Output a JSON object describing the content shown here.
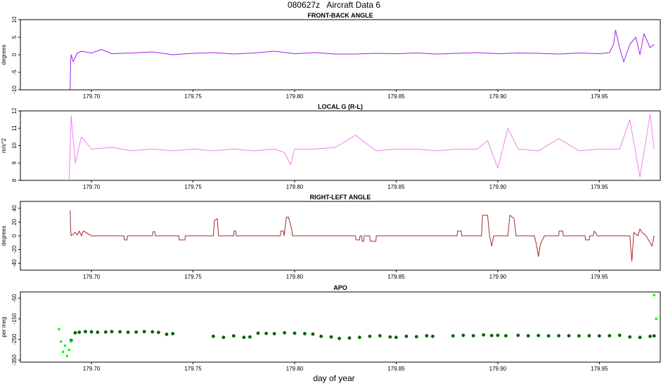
{
  "figure": {
    "title": "080627z   Aircraft Data 6",
    "xlabel": "day of year"
  },
  "chart_data": [
    {
      "type": "line",
      "title": "FRONT-BACK ANGLE",
      "ylabel": "degrees",
      "color": "#a020f0",
      "xlim": [
        179.665,
        179.98
      ],
      "ylim": [
        -10,
        10
      ],
      "xticks": [
        179.7,
        179.75,
        179.8,
        179.85,
        179.9,
        179.95
      ],
      "xtick_labels": [
        "179.70",
        "179.75",
        "179.80",
        "179.85",
        "179.90",
        "179.95"
      ],
      "yticks": [
        -10,
        -5,
        0,
        5,
        10
      ],
      "ytick_labels": [
        "-10",
        "-5",
        "0",
        "5",
        "10"
      ],
      "series": [
        {
          "x": [
            179.6895,
            179.6897,
            179.69,
            179.691,
            179.693,
            179.695,
            179.7,
            179.705,
            179.71,
            179.72,
            179.73,
            179.74,
            179.75,
            179.76,
            179.77,
            179.78,
            179.79,
            179.8,
            179.81,
            179.82,
            179.83,
            179.84,
            179.85,
            179.86,
            179.87,
            179.88,
            179.89,
            179.9,
            179.91,
            179.92,
            179.93,
            179.94,
            179.95,
            179.955,
            179.957,
            179.958,
            179.96,
            179.962,
            179.965,
            179.968,
            179.97,
            179.972,
            179.975,
            179.977
          ],
          "y": [
            -10,
            -2,
            0,
            -2,
            0.5,
            1,
            0.5,
            1.5,
            0.3,
            0.5,
            0.8,
            0,
            0.4,
            0.6,
            0.2,
            0.5,
            1,
            0.3,
            0.6,
            0.2,
            0.2,
            0.4,
            0.3,
            0.5,
            0.2,
            0.4,
            0.6,
            0.3,
            0.5,
            0.4,
            0.2,
            0.5,
            0.3,
            0.6,
            3,
            7,
            2,
            -2,
            3,
            5,
            0,
            6,
            2,
            3
          ]
        }
      ]
    },
    {
      "type": "line",
      "title": "LOCAL G (R-L)",
      "ylabel": "m/s^2",
      "color": "#ee82ee",
      "xlim": [
        179.665,
        179.98
      ],
      "ylim": [
        8,
        12
      ],
      "xticks": [
        179.7,
        179.75,
        179.8,
        179.85,
        179.9,
        179.95
      ],
      "xtick_labels": [
        "179.70",
        "179.75",
        "179.80",
        "179.85",
        "179.90",
        "179.95"
      ],
      "yticks": [
        8,
        9,
        10,
        11,
        12
      ],
      "ytick_labels": [
        "8",
        "9",
        "10",
        "11",
        "12"
      ],
      "series": [
        {
          "x": [
            179.689,
            179.69,
            179.692,
            179.695,
            179.7,
            179.71,
            179.72,
            179.73,
            179.74,
            179.75,
            179.76,
            179.77,
            179.78,
            179.79,
            179.795,
            179.798,
            179.8,
            179.81,
            179.82,
            179.83,
            179.84,
            179.85,
            179.86,
            179.87,
            179.88,
            179.89,
            179.895,
            179.9,
            179.905,
            179.91,
            179.92,
            179.93,
            179.94,
            179.95,
            179.96,
            179.965,
            179.97,
            179.975,
            179.977
          ],
          "y": [
            8,
            11.7,
            9,
            10.5,
            9.8,
            9.9,
            9.7,
            9.8,
            9.7,
            9.8,
            9.7,
            9.8,
            9.7,
            9.8,
            9.6,
            8.9,
            9.8,
            9.8,
            9.9,
            10.6,
            9.7,
            9.8,
            9.8,
            9.7,
            9.8,
            9.8,
            10.3,
            8.7,
            11,
            9.8,
            9.7,
            10.4,
            9.7,
            9.8,
            9.8,
            11.5,
            8.2,
            11.8,
            9.8
          ]
        }
      ]
    },
    {
      "type": "line",
      "title": "RIGHT-LEFT ANGLE",
      "ylabel": "degrees",
      "color": "#a52a2a",
      "xlim": [
        179.665,
        179.98
      ],
      "ylim": [
        -50,
        50
      ],
      "xticks": [
        179.7,
        179.75,
        179.8,
        179.85,
        179.9,
        179.95
      ],
      "xtick_labels": [
        "179.70",
        "179.75",
        "179.80",
        "179.85",
        "179.90",
        "179.95"
      ],
      "yticks": [
        -40,
        -20,
        0,
        20,
        40
      ],
      "ytick_labels": [
        "-40",
        "-20",
        "0",
        "20",
        "40"
      ],
      "series": [
        {
          "x": [
            179.6895,
            179.6897,
            179.69,
            179.692,
            179.693,
            179.694,
            179.695,
            179.696,
            179.7,
            179.716,
            179.7162,
            179.7175,
            179.7177,
            179.73,
            179.7302,
            179.7312,
            179.7314,
            179.743,
            179.7432,
            179.746,
            179.7462,
            179.76,
            179.7605,
            179.762,
            179.7625,
            179.77,
            179.7702,
            179.771,
            179.7712,
            179.793,
            179.7932,
            179.7945,
            179.7948,
            179.796,
            179.797,
            179.7985,
            179.799,
            179.81,
            179.83,
            179.8302,
            179.832,
            179.8322,
            179.833,
            179.8332,
            179.834,
            179.8342,
            179.837,
            179.8372,
            179.84,
            179.8402,
            179.88,
            179.8802,
            179.882,
            179.8822,
            179.892,
            179.8925,
            179.895,
            179.896,
            179.897,
            179.898,
            179.9,
            179.905,
            179.906,
            179.908,
            179.909,
            179.913,
            179.918,
            179.919,
            179.92,
            179.921,
            179.923,
            179.93,
            179.9302,
            179.932,
            179.9322,
            179.943,
            179.9432,
            179.945,
            179.9452,
            179.947,
            179.9475,
            179.949,
            179.96,
            179.965,
            179.966,
            179.967,
            179.969,
            179.97,
            179.971,
            179.973,
            179.975,
            179.976,
            179.977
          ],
          "y": [
            37,
            10,
            0,
            5,
            1,
            7,
            0,
            7,
            0,
            0,
            -6,
            -6,
            0,
            0,
            6,
            6,
            0,
            0,
            -6,
            -6,
            0,
            0,
            22,
            25,
            0,
            0,
            7,
            7,
            0,
            0,
            7,
            7,
            0,
            27,
            27,
            10,
            0,
            0,
            0,
            -6,
            -6,
            0,
            0,
            -8,
            -8,
            0,
            0,
            -8,
            -8,
            0,
            0,
            7,
            7,
            0,
            0,
            30,
            30,
            0,
            -15,
            0,
            0,
            0,
            30,
            25,
            0,
            0,
            0,
            -12,
            -30,
            -12,
            0,
            0,
            7,
            7,
            0,
            0,
            -6,
            -6,
            0,
            0,
            7,
            0,
            0,
            0,
            -37,
            5,
            0,
            10,
            5,
            0,
            -10,
            -15,
            0
          ]
        }
      ]
    },
    {
      "type": "scatter",
      "title": "APO",
      "ylabel": "per meg",
      "colors": [
        "#006400",
        "#00ff00"
      ],
      "xlim": [
        179.665,
        179.98
      ],
      "ylim": [
        -360,
        -20
      ],
      "xticks": [
        179.7,
        179.75,
        179.8,
        179.85,
        179.9,
        179.95
      ],
      "xtick_labels": [
        "179.70",
        "179.75",
        "179.80",
        "179.85",
        "179.90",
        "179.95"
      ],
      "yticks": [
        -350,
        -250,
        -150,
        -50
      ],
      "ytick_labels": [
        "-350",
        "-250",
        "-150",
        "-50"
      ],
      "series": [
        {
          "x": [
            179.69,
            179.692,
            179.694,
            179.697,
            179.7,
            179.703,
            179.707,
            179.71,
            179.714,
            179.718,
            179.722,
            179.726,
            179.73,
            179.733,
            179.737,
            179.74,
            179.76,
            179.765,
            179.77,
            179.775,
            179.778,
            179.782,
            179.786,
            179.79,
            179.795,
            179.8,
            179.805,
            179.809,
            179.813,
            179.818,
            179.822,
            179.827,
            179.832,
            179.837,
            179.842,
            179.847,
            179.85,
            179.855,
            179.86,
            179.865,
            179.868,
            179.878,
            179.883,
            179.888,
            179.893,
            179.897,
            179.9,
            179.904,
            179.91,
            179.915,
            179.92,
            179.925,
            179.93,
            179.935,
            179.94,
            179.945,
            179.95,
            179.955,
            179.96,
            179.965,
            179.97,
            179.975,
            179.977
          ],
          "y": [
            -255,
            -218,
            -215,
            -212,
            -213,
            -215,
            -214,
            -212,
            -213,
            -215,
            -214,
            -212,
            -213,
            -216,
            -225,
            -222,
            -235,
            -240,
            -233,
            -240,
            -238,
            -220,
            -221,
            -222,
            -218,
            -220,
            -222,
            -224,
            -235,
            -238,
            -245,
            -243,
            -240,
            -235,
            -232,
            -238,
            -240,
            -235,
            -237,
            -232,
            -235,
            -233,
            -230,
            -232,
            -228,
            -231,
            -230,
            -232,
            -230,
            -232,
            -231,
            -233,
            -232,
            -232,
            -233,
            -232,
            -233,
            -232,
            -230,
            -238,
            -240,
            -235,
            -233
          ]
        },
        {
          "x": [
            179.684,
            179.685,
            179.686,
            179.687,
            179.688,
            179.689,
            179.69,
            179.977,
            179.978
          ],
          "y": [
            -200,
            -260,
            -310,
            -280,
            -330,
            -300,
            -260,
            -35,
            -150
          ]
        }
      ]
    }
  ]
}
